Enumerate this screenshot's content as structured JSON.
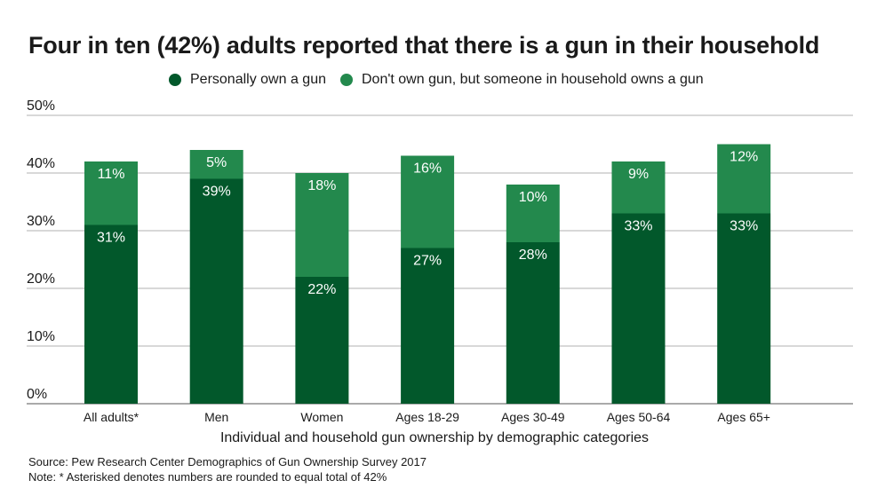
{
  "chart_data": {
    "type": "bar",
    "stacked": true,
    "title": "Four in ten (42%) adults reported that there is a gun in their household",
    "xlabel": "Individual and household gun ownership by demographic categories",
    "ylabel": "",
    "ylim": [
      0,
      50
    ],
    "yticks": [
      0,
      10,
      20,
      30,
      40,
      50
    ],
    "ytick_labels": [
      "0%",
      "10%",
      "20%",
      "30%",
      "40%",
      "50%"
    ],
    "grid": true,
    "legend_position": "top",
    "categories": [
      "All adults*",
      "Men",
      "Women",
      "Ages 18-29",
      "Ages 30-49",
      "Ages 50-64",
      "Ages 65+"
    ],
    "series": [
      {
        "name": "Personally own a gun",
        "color": "#02582b",
        "values": [
          31,
          39,
          22,
          27,
          28,
          33,
          33
        ],
        "labels": [
          "31%",
          "39%",
          "22%",
          "27%",
          "28%",
          "33%",
          "33%"
        ]
      },
      {
        "name": "Don't own gun, but someone in household owns a gun",
        "color": "#23894d",
        "values": [
          11,
          5,
          18,
          16,
          10,
          9,
          12
        ],
        "labels": [
          "11%",
          "5%",
          "18%",
          "16%",
          "10%",
          "9%",
          "12%"
        ]
      }
    ]
  },
  "footer": {
    "source": "Source: Pew Research Center Demographics of Gun Ownership Survey 2017",
    "note": "Note: * Asterisked denotes numbers are rounded to equal total of 42%"
  },
  "colors": {
    "grid": "#b0b0b0",
    "axis": "#555555",
    "text": "#1a1a1a"
  }
}
